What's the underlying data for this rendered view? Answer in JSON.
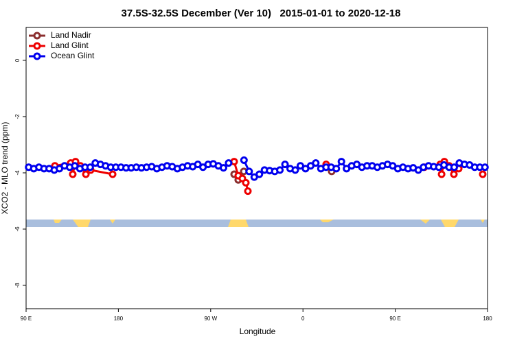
{
  "chart_data": {
    "type": "line",
    "title": "37.5S-32.5S December (Ver 10)   2015-01-01 to 2020-12-18",
    "x_label": "Longitude",
    "y_label": "XCO2 - MLO trend (ppm)",
    "xlim": [
      90,
      540
    ],
    "xticks": [
      {
        "value": 90,
        "label": "90 E"
      },
      180,
      {
        "value": 270,
        "label": "90 W"
      },
      {
        "value": 360,
        "label": "0"
      },
      {
        "value": 450,
        "label": "90 E"
      },
      {
        "value": 540,
        "label": "180"
      }
    ],
    "ylim": [
      -8.83,
      1.17
    ],
    "yticks": [
      0,
      -2,
      -4,
      -6,
      -8
    ],
    "legend": "top-left",
    "series": [
      {
        "name": "Land Nadir",
        "color": "#8b2f2f",
        "x": [
          292.9,
          296.9,
          302.3,
          null,
          388
        ],
        "values": [
          -4.05,
          -4.25,
          -3.95,
          null,
          -3.95
        ]
      },
      {
        "name": "Land Glint",
        "color": "#ee0000",
        "x": [
          118.1,
          133.5,
          135.5,
          138.2,
          142.9,
          148.3,
          153,
          174.4,
          null,
          292.9,
          296.9,
          300.9,
          304.3,
          306.3,
          null,
          382.6,
          null,
          478.4,
          493.8,
          495.2,
          497.9,
          502.5,
          507.2,
          511.9,
          null,
          535.3
        ],
        "values": [
          -3.75,
          -3.65,
          -4.05,
          -3.6,
          -3.75,
          -4.05,
          -3.9,
          -4.05,
          null,
          -3.6,
          -4.1,
          -4.2,
          -4.35,
          -4.65,
          null,
          -3.7,
          null,
          -3.8,
          -3.7,
          -4.05,
          -3.6,
          -3.75,
          -4.05,
          -3.85,
          null,
          -4.05
        ]
      },
      {
        "name": "Ocean Glint",
        "color": "#0000ee",
        "x": [
          92.5,
          97.5,
          102.5,
          107.5,
          112.5,
          117.5,
          122.5,
          127.5,
          132.5,
          137.5,
          142.5,
          147.5,
          152.5,
          157.5,
          162.5,
          167.5,
          172.5,
          177.5,
          182.5,
          187.5,
          192.5,
          197.5,
          202.5,
          207.5,
          212.5,
          217.5,
          222.5,
          227.5,
          232.5,
          237.5,
          242.5,
          247.5,
          252.5,
          257.5,
          262.5,
          267.5,
          272.5,
          277.5,
          282.5,
          287.5,
          null,
          302.5,
          307.5,
          312.5,
          317.5,
          322.5,
          327.5,
          332.5,
          337.5,
          342.5,
          347.5,
          352.5,
          357.5,
          362.5,
          367.5,
          372.5,
          377.5,
          382.5,
          387.5,
          392.5,
          397.5,
          402.5,
          407.5,
          412.5,
          417.5,
          422.5,
          427.5,
          432.5,
          437.5,
          442.5,
          447.5,
          452.5,
          457.5,
          462.5,
          467.5,
          472.5,
          477.5,
          482.5,
          487.5,
          492.5,
          497.5,
          502.5,
          507.5,
          512.5,
          517.5,
          522.5,
          527.5,
          532.5,
          537.5
        ],
        "values": [
          -3.8,
          -3.85,
          -3.8,
          -3.85,
          -3.85,
          -3.9,
          -3.85,
          -3.75,
          -3.8,
          -3.75,
          -3.85,
          -3.8,
          -3.8,
          -3.65,
          -3.7,
          -3.75,
          -3.8,
          -3.8,
          -3.8,
          -3.82,
          -3.82,
          -3.8,
          -3.82,
          -3.8,
          -3.78,
          -3.85,
          -3.8,
          -3.75,
          -3.78,
          -3.85,
          -3.8,
          -3.75,
          -3.78,
          -3.7,
          -3.8,
          -3.7,
          -3.68,
          -3.75,
          -3.82,
          -3.65,
          null,
          -3.55,
          -3.95,
          -4.15,
          -4.05,
          -3.9,
          -3.92,
          -3.95,
          -3.9,
          -3.7,
          -3.85,
          -3.9,
          -3.75,
          -3.85,
          -3.75,
          -3.65,
          -3.85,
          -3.8,
          -3.8,
          -3.85,
          -3.6,
          -3.85,
          -3.75,
          -3.7,
          -3.8,
          -3.75,
          -3.75,
          -3.8,
          -3.75,
          -3.7,
          -3.75,
          -3.85,
          -3.8,
          -3.85,
          -3.82,
          -3.9,
          -3.8,
          -3.75,
          -3.78,
          -3.8,
          -3.72,
          -3.8,
          -3.8,
          -3.65,
          -3.7,
          -3.72,
          -3.8,
          -3.8,
          -3.8
        ]
      }
    ]
  }
}
